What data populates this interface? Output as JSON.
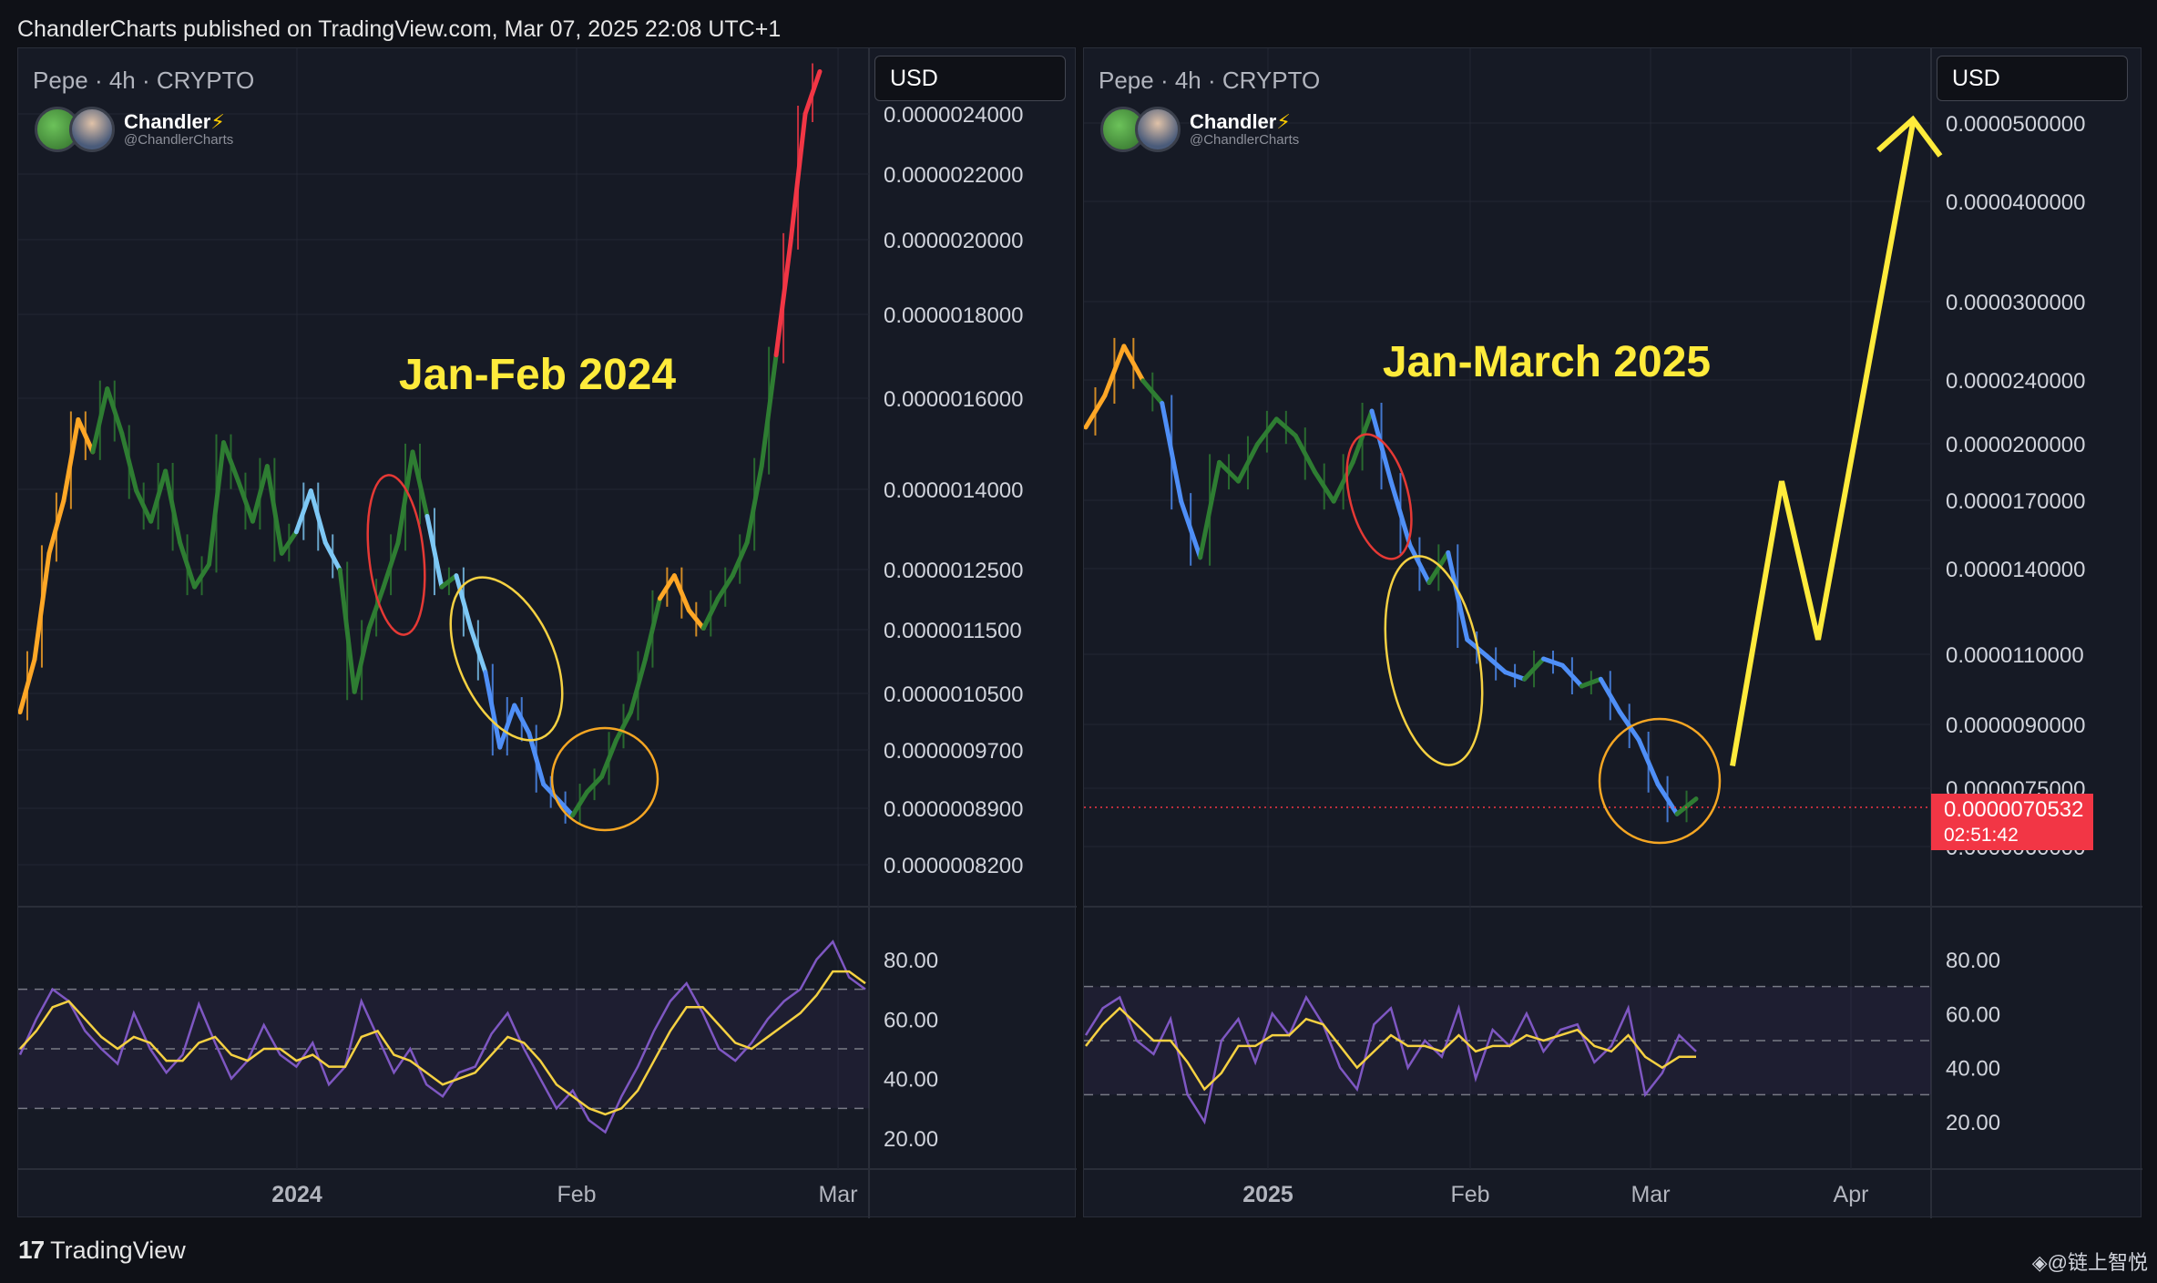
{
  "header": {
    "text": "ChandlerCharts published on TradingView.com, Mar 07, 2025 22:08 UTC+1"
  },
  "footer": {
    "logo_text": "TradingView",
    "watermark": "◈@链上智悦"
  },
  "author": {
    "name": "Chandler",
    "handle": "@ChandlerCharts"
  },
  "colors": {
    "background": "#161a25",
    "grid": "#232733",
    "up_orange": "#ffa726",
    "green": "#2e7d32",
    "blue": "#4f8ff7",
    "light_blue": "#7ec8f5",
    "red": "#f23645",
    "annotation_yellow": "#ffeb3b",
    "rsi": "#7e57c2",
    "rsi_ma": "#f5d142"
  },
  "chart_data": [
    {
      "type": "line",
      "symbol": "Pepe · 4h · CRYPTO",
      "currency": "USD",
      "annotation": "Jan-Feb 2024",
      "x_labels": [
        "2024",
        "Feb",
        "Mar"
      ],
      "price_ticks": [
        "0.0000024000",
        "0.0000022000",
        "0.0000020000",
        "0.0000018000",
        "0.0000016000",
        "0.0000014000",
        "0.0000012500",
        "0.0000011500",
        "0.0000010500",
        "0.0000009700",
        "0.0000008900",
        "0.0000008200"
      ],
      "price_series": [
        1.02,
        1.1,
        1.28,
        1.38,
        1.55,
        1.48,
        1.62,
        1.52,
        1.4,
        1.34,
        1.44,
        1.3,
        1.22,
        1.26,
        1.5,
        1.42,
        1.34,
        1.45,
        1.28,
        1.32,
        1.4,
        1.3,
        1.25,
        1.05,
        1.15,
        1.22,
        1.3,
        1.48,
        1.35,
        1.22,
        1.24,
        1.15,
        1.08,
        0.97,
        1.03,
        0.99,
        0.92,
        0.9,
        0.88,
        0.91,
        0.93,
        0.98,
        1.02,
        1.1,
        1.2,
        1.24,
        1.18,
        1.15,
        1.2,
        1.24,
        1.3,
        1.45,
        1.7,
        2.0,
        2.4,
        2.55
      ],
      "rsi_ticks": [
        "80.00",
        "60.00",
        "40.00",
        "20.00"
      ],
      "rsi_series": [
        48,
        60,
        70,
        66,
        56,
        50,
        45,
        62,
        50,
        42,
        48,
        65,
        52,
        40,
        46,
        58,
        48,
        44,
        52,
        38,
        44,
        66,
        54,
        42,
        50,
        38,
        34,
        42,
        44,
        55,
        62,
        50,
        40,
        30,
        36,
        26,
        22,
        34,
        44,
        56,
        66,
        72,
        62,
        50,
        46,
        52,
        60,
        66,
        70,
        80,
        86,
        74,
        70
      ],
      "rsi_ma_series": [
        50,
        56,
        64,
        66,
        60,
        54,
        50,
        54,
        52,
        46,
        46,
        52,
        54,
        48,
        46,
        50,
        50,
        46,
        48,
        44,
        44,
        54,
        56,
        48,
        46,
        42,
        38,
        40,
        42,
        48,
        54,
        52,
        46,
        38,
        34,
        30,
        28,
        30,
        36,
        46,
        56,
        64,
        64,
        58,
        52,
        50,
        54,
        58,
        62,
        68,
        76,
        76,
        72
      ],
      "ellipses": [
        "red",
        "yellow",
        "orange"
      ]
    },
    {
      "type": "line",
      "symbol": "Pepe · 4h · CRYPTO",
      "currency": "USD",
      "annotation": "Jan-March 2025",
      "x_labels": [
        "2025",
        "Feb",
        "Mar",
        "Apr"
      ],
      "price_ticks": [
        "0.0000500000",
        "0.0000400000",
        "0.0000300000",
        "0.0000240000",
        "0.0000200000",
        "0.0000170000",
        "0.0000140000",
        "0.0000110000",
        "0.0000090000",
        "0.0000075000",
        "0.0000060000"
      ],
      "last_price": "0.0000070532",
      "countdown": "02:51:42",
      "price_series": [
        20.5,
        22.5,
        26.0,
        23.5,
        22.0,
        16.5,
        14.0,
        18.5,
        17.5,
        19.5,
        21.0,
        20.0,
        18.0,
        16.5,
        18.5,
        21.5,
        17.5,
        14.5,
        13.0,
        14.2,
        11.0,
        10.5,
        10.0,
        9.8,
        10.4,
        10.2,
        9.6,
        9.8,
        8.9,
        8.2,
        7.2,
        6.6,
        6.9
      ],
      "projection": [
        7.6,
        17.5,
        11.0,
        50.0
      ],
      "rsi_ticks": [
        "80.00",
        "60.00",
        "40.00",
        "20.00"
      ],
      "rsi_series": [
        52,
        62,
        66,
        50,
        45,
        58,
        30,
        20,
        50,
        58,
        42,
        60,
        52,
        66,
        56,
        40,
        32,
        56,
        62,
        40,
        50,
        44,
        62,
        36,
        54,
        48,
        60,
        46,
        54,
        56,
        42,
        48,
        62,
        30,
        38,
        52,
        46
      ],
      "rsi_ma_series": [
        48,
        56,
        62,
        56,
        50,
        50,
        42,
        32,
        38,
        48,
        48,
        52,
        52,
        58,
        56,
        48,
        40,
        46,
        52,
        48,
        48,
        46,
        52,
        46,
        48,
        48,
        52,
        50,
        52,
        54,
        48,
        46,
        52,
        44,
        40,
        44,
        44
      ],
      "ellipses": [
        "red",
        "yellow",
        "orange"
      ]
    }
  ]
}
